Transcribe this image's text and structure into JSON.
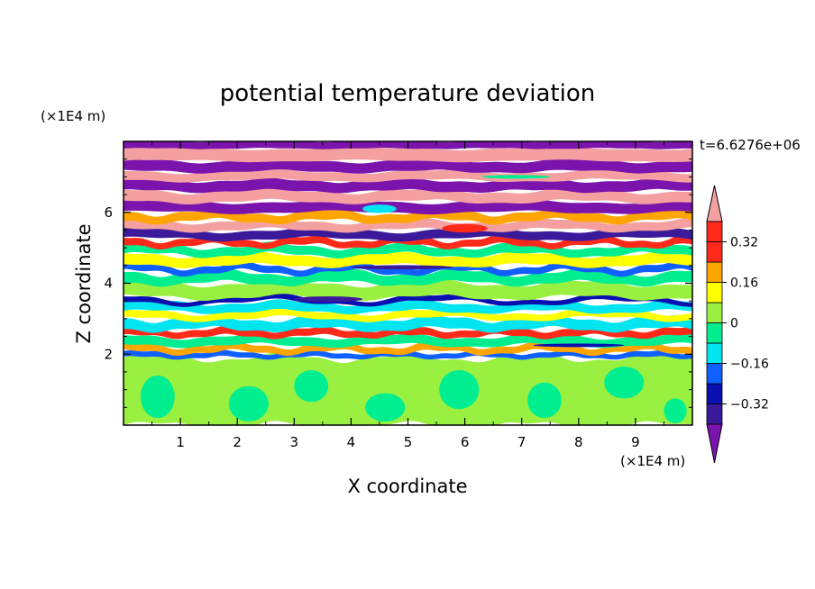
{
  "chart_data": {
    "type": "heatmap",
    "title": "potential temperature deviation",
    "xlabel": "X coordinate",
    "ylabel": "Z coordinate",
    "x_unit": "(×1E4 m)",
    "y_unit": "(×1E4 m)",
    "time_label": "t=6.6276e+06",
    "xlim": [
      0,
      10
    ],
    "ylim": [
      0,
      8
    ],
    "x_ticks": [
      1,
      2,
      3,
      4,
      5,
      6,
      7,
      8,
      9
    ],
    "y_ticks": [
      2,
      4,
      6
    ],
    "colorbar": {
      "tick_values": [
        -0.32,
        -0.16,
        0,
        0.16,
        0.32
      ],
      "tick_labels": [
        "−0.32",
        "−0.16",
        "0",
        "0.16",
        "0.32"
      ],
      "levels": [
        -0.4,
        -0.32,
        -0.24,
        -0.16,
        -0.08,
        0,
        0.08,
        0.16,
        0.24,
        0.32,
        0.4
      ],
      "colors": [
        "#7a14ad",
        "#3a1a9a",
        "#0a10b0",
        "#1060ff",
        "#00e5f0",
        "#00ee90",
        "#9af040",
        "#ffff00",
        "#ffa500",
        "#ff2a1a",
        "#f5a0a0"
      ],
      "extend": "both"
    },
    "bands": [
      {
        "z0": 0.0,
        "z1": 1.9,
        "level": 6,
        "amp": 0.6,
        "wl": 2.2,
        "phase": 0.0
      },
      {
        "z0": 1.9,
        "z1": 2.05,
        "level": 3,
        "amp": 0.3,
        "wl": 1.5,
        "phase": 0.4
      },
      {
        "z0": 2.05,
        "z1": 2.25,
        "level": 8,
        "amp": 0.5,
        "wl": 1.8,
        "phase": 1.1
      },
      {
        "z0": 2.25,
        "z1": 2.5,
        "level": 5,
        "amp": 0.4,
        "wl": 2.5,
        "phase": 2.0
      },
      {
        "z0": 2.5,
        "z1": 2.7,
        "level": 9,
        "amp": 0.4,
        "wl": 1.6,
        "phase": 0.7
      },
      {
        "z0": 2.7,
        "z1": 3.0,
        "level": 4,
        "amp": 0.5,
        "wl": 2.0,
        "phase": 3.1
      },
      {
        "z0": 3.0,
        "z1": 3.2,
        "level": 7,
        "amp": 0.5,
        "wl": 2.8,
        "phase": 1.6
      },
      {
        "z0": 3.2,
        "z1": 3.45,
        "level": 4,
        "amp": 0.4,
        "wl": 2.3,
        "phase": 0.2
      },
      {
        "z0": 3.45,
        "z1": 3.6,
        "level": 2,
        "amp": 0.6,
        "wl": 3.0,
        "phase": 2.4
      },
      {
        "z0": 3.6,
        "z1": 4.0,
        "level": 6,
        "amp": 0.5,
        "wl": 2.6,
        "phase": 1.0
      },
      {
        "z0": 4.0,
        "z1": 4.3,
        "level": 5,
        "amp": 0.5,
        "wl": 2.1,
        "phase": 2.7
      },
      {
        "z0": 4.3,
        "z1": 4.5,
        "level": 3,
        "amp": 0.6,
        "wl": 1.9,
        "phase": 0.9
      },
      {
        "z0": 4.5,
        "z1": 4.8,
        "level": 7,
        "amp": 0.4,
        "wl": 2.4,
        "phase": 1.8
      },
      {
        "z0": 4.8,
        "z1": 5.05,
        "level": 5,
        "amp": 0.5,
        "wl": 2.2,
        "phase": 0.3
      },
      {
        "z0": 5.05,
        "z1": 5.25,
        "level": 9,
        "amp": 0.5,
        "wl": 1.7,
        "phase": 2.2
      },
      {
        "z0": 5.25,
        "z1": 5.5,
        "level": 1,
        "amp": 0.4,
        "wl": 2.9,
        "phase": 0.6
      },
      {
        "z0": 5.5,
        "z1": 5.75,
        "level": 10,
        "amp": 0.4,
        "wl": 2.5,
        "phase": 1.4
      },
      {
        "z0": 5.75,
        "z1": 6.0,
        "level": 8,
        "amp": 0.5,
        "wl": 2.0,
        "phase": 2.9
      },
      {
        "z0": 6.0,
        "z1": 6.3,
        "level": 0,
        "amp": 0.3,
        "wl": 3.2,
        "phase": 0.5
      },
      {
        "z0": 6.3,
        "z1": 6.6,
        "level": 10,
        "amp": 0.4,
        "wl": 2.7,
        "phase": 1.9
      },
      {
        "z0": 6.6,
        "z1": 6.9,
        "level": 0,
        "amp": 0.3,
        "wl": 2.3,
        "phase": 0.8
      },
      {
        "z0": 6.9,
        "z1": 7.15,
        "level": 10,
        "amp": 0.3,
        "wl": 3.0,
        "phase": 2.5
      },
      {
        "z0": 7.15,
        "z1": 7.45,
        "level": 0,
        "amp": 0.3,
        "wl": 2.6,
        "phase": 1.2
      },
      {
        "z0": 7.45,
        "z1": 7.8,
        "level": 10,
        "amp": 0.2,
        "wl": 3.4,
        "phase": 0.1
      },
      {
        "z0": 7.8,
        "z1": 8.0,
        "level": 0,
        "amp": 0.1,
        "wl": 2.0,
        "phase": 0.0
      }
    ],
    "blobs": [
      {
        "x": 3.6,
        "z": 3.55,
        "rx": 0.6,
        "rz": 0.08,
        "level": 1
      },
      {
        "x": 4.9,
        "z": 4.45,
        "rx": 0.9,
        "rz": 0.06,
        "level": 1
      },
      {
        "x": 6.0,
        "z": 5.55,
        "rx": 0.4,
        "rz": 0.12,
        "level": 9
      },
      {
        "x": 4.5,
        "z": 6.1,
        "rx": 0.3,
        "rz": 0.12,
        "level": 4
      },
      {
        "x": 8.0,
        "z": 2.25,
        "rx": 0.8,
        "rz": 0.05,
        "level": 2
      },
      {
        "x": 6.9,
        "z": 7.0,
        "rx": 0.6,
        "rz": 0.05,
        "level": 5
      }
    ],
    "lower_patches": [
      {
        "x": 0.6,
        "z": 0.8,
        "rx": 0.3,
        "rz": 0.6,
        "level": 5
      },
      {
        "x": 2.2,
        "z": 0.6,
        "rx": 0.35,
        "rz": 0.5,
        "level": 5
      },
      {
        "x": 3.3,
        "z": 1.1,
        "rx": 0.3,
        "rz": 0.45,
        "level": 5
      },
      {
        "x": 4.6,
        "z": 0.5,
        "rx": 0.35,
        "rz": 0.4,
        "level": 5
      },
      {
        "x": 5.9,
        "z": 1.0,
        "rx": 0.35,
        "rz": 0.55,
        "level": 5
      },
      {
        "x": 7.4,
        "z": 0.7,
        "rx": 0.3,
        "rz": 0.5,
        "level": 5
      },
      {
        "x": 8.8,
        "z": 1.2,
        "rx": 0.35,
        "rz": 0.45,
        "level": 5
      },
      {
        "x": 9.7,
        "z": 0.4,
        "rx": 0.2,
        "rz": 0.35,
        "level": 5
      }
    ]
  }
}
